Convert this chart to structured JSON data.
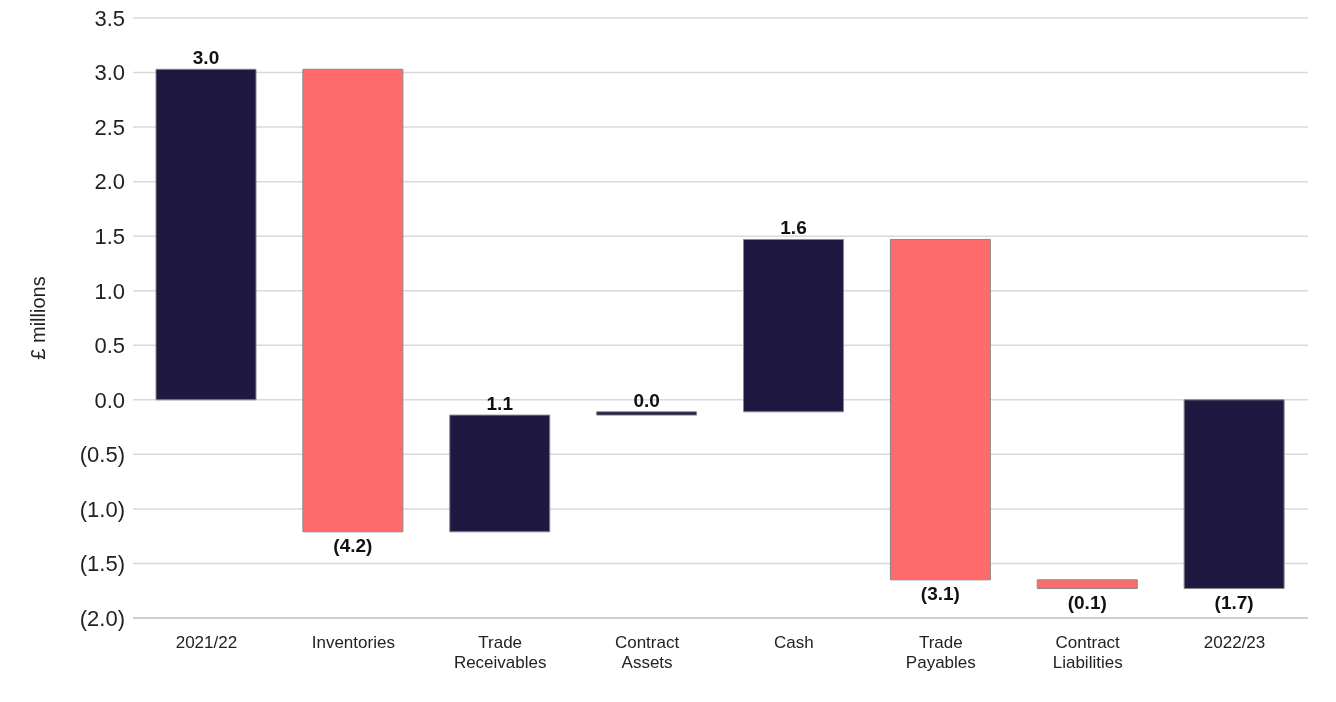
{
  "chart_data": {
    "type": "bar",
    "ylabel": "£ millions",
    "categories": [
      "2021/22",
      "Inventories",
      "Trade Receivables",
      "Contract Assets",
      "Cash",
      "Trade Payables",
      "Contract Liabilities",
      "2022/23"
    ],
    "base": [
      0,
      3.03,
      -1.21,
      -0.14,
      -0.11,
      1.47,
      -1.65,
      0
    ],
    "values": [
      3.03,
      -4.24,
      1.07,
      0.03,
      1.58,
      -3.12,
      -0.08,
      -1.73
    ],
    "colors": [
      "#1f1840",
      "#ff6b6b",
      "#1f1840",
      "#1f1840",
      "#1f1840",
      "#ff6b6b",
      "#ff6b6b",
      "#1f1840"
    ],
    "value_labels": [
      "3.0",
      "(4.2)",
      "1.1",
      "0.0",
      "1.6",
      "(3.1)",
      "(0.1)",
      "(1.7)"
    ],
    "ylim": [
      -2,
      3.5
    ],
    "yticks": [
      {
        "value": -2,
        "label": "(2.0)"
      },
      {
        "value": -1.5,
        "label": "(1.5)"
      },
      {
        "value": -1,
        "label": "(1.0)"
      },
      {
        "value": -0.5,
        "label": "(0.5)"
      },
      {
        "value": 0,
        "label": "0.0"
      },
      0.5,
      {
        "value": 1,
        "label": "1.0"
      },
      1.5,
      {
        "value": 2,
        "label": "2.0"
      },
      2.5,
      {
        "value": 3,
        "label": "3.0"
      },
      3.5
    ],
    "grid": "y"
  }
}
